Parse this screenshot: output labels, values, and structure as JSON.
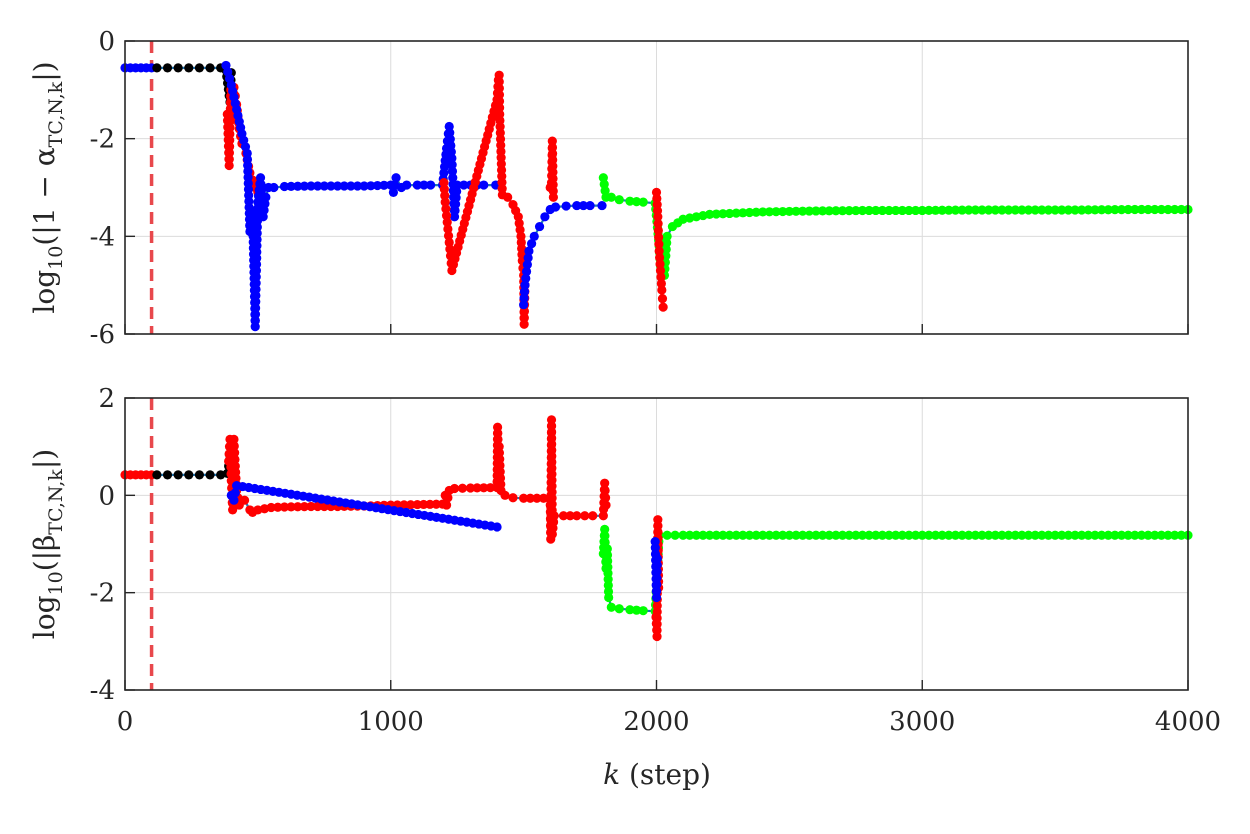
{
  "chart_data": [
    {
      "type": "scatter",
      "ylabel": {
        "prefix": "log",
        "sub1": "10",
        "mid": "(|1 − α",
        "sub2": "TC,N,k",
        "suffix": "|)"
      },
      "xlim": [
        0,
        4000
      ],
      "ylim": [
        -6,
        0
      ],
      "yticks": [
        "0",
        "-2",
        "-4",
        "-6"
      ],
      "ytick_values": [
        0,
        -2,
        -4,
        -6
      ],
      "xticks_shown": false,
      "grid": true,
      "vline": {
        "x": 100,
        "color": "#e8484c",
        "style": "dashed"
      },
      "stem_color": "#1f77b4",
      "segments": [
        {
          "color": "#0000ff",
          "points": [
            [
              0,
              -0.55
            ],
            [
              20,
              -0.55
            ],
            [
              40,
              -0.55
            ],
            [
              60,
              -0.55
            ],
            [
              80,
              -0.55
            ],
            [
              100,
              -0.55
            ]
          ]
        },
        {
          "color": "#000000",
          "points": [
            [
              120,
              -0.55
            ],
            [
              160,
              -0.55
            ],
            [
              200,
              -0.55
            ],
            [
              240,
              -0.55
            ],
            [
              280,
              -0.55
            ],
            [
              320,
              -0.55
            ],
            [
              360,
              -0.55
            ],
            [
              380,
              -0.6
            ],
            [
              395,
              -1.25
            ],
            [
              400,
              -0.65
            ]
          ]
        },
        {
          "color": "#ff0000",
          "points": [
            [
              385,
              -1.5
            ],
            [
              392,
              -2.55
            ],
            [
              398,
              -1.0
            ],
            [
              405,
              -1.6
            ],
            [
              410,
              -0.95
            ],
            [
              420,
              -1.3
            ],
            [
              430,
              -1.8
            ],
            [
              440,
              -2.1
            ],
            [
              455,
              -2.3
            ],
            [
              470,
              -2.7
            ],
            [
              480,
              -2.85
            ],
            [
              490,
              -3.0
            ],
            [
              500,
              -3.1
            ]
          ]
        },
        {
          "color": "#0000ff",
          "points": [
            [
              380,
              -0.5
            ],
            [
              400,
              -0.9
            ],
            [
              420,
              -1.4
            ],
            [
              440,
              -1.9
            ],
            [
              460,
              -2.3
            ],
            [
              470,
              -3.9
            ],
            [
              480,
              -3.5
            ],
            [
              490,
              -5.85
            ],
            [
              500,
              -3.3
            ],
            [
              510,
              -2.8
            ],
            [
              520,
              -3.6
            ],
            [
              530,
              -3.2
            ],
            [
              540,
              -3.0
            ],
            [
              560,
              -3.0
            ],
            [
              600,
              -2.98
            ],
            [
              700,
              -2.97
            ],
            [
              800,
              -2.97
            ],
            [
              900,
              -2.97
            ],
            [
              1000,
              -2.95
            ],
            [
              1010,
              -3.1
            ],
            [
              1020,
              -2.8
            ],
            [
              1040,
              -3.0
            ],
            [
              1060,
              -2.95
            ],
            [
              1100,
              -2.95
            ],
            [
              1150,
              -2.95
            ],
            [
              1195,
              -2.95
            ],
            [
              1210,
              -2.2
            ],
            [
              1220,
              -1.75
            ],
            [
              1230,
              -2.4
            ],
            [
              1240,
              -3.6
            ],
            [
              1250,
              -2.95
            ],
            [
              1300,
              -2.95
            ],
            [
              1350,
              -2.95
            ],
            [
              1395,
              -2.95
            ]
          ]
        },
        {
          "color": "#ff0000",
          "points": [
            [
              1200,
              -2.9
            ],
            [
              1205,
              -3.3
            ],
            [
              1225,
              -4.4
            ],
            [
              1230,
              -4.7
            ],
            [
              1400,
              -1.2
            ],
            [
              1405,
              -0.8
            ],
            [
              1408,
              -0.7
            ],
            [
              1410,
              -1.5
            ],
            [
              1420,
              -3.15
            ],
            [
              1440,
              -3.2
            ],
            [
              1460,
              -3.35
            ],
            [
              1480,
              -3.6
            ],
            [
              1490,
              -4.0
            ],
            [
              1495,
              -4.5
            ],
            [
              1500,
              -4.8
            ],
            [
              1502,
              -5.8
            ],
            [
              1505,
              -5.0
            ]
          ]
        },
        {
          "color": "#0000ff",
          "points": [
            [
              1500,
              -5.4
            ],
            [
              1505,
              -5.0
            ],
            [
              1520,
              -4.3
            ],
            [
              1540,
              -4.0
            ],
            [
              1560,
              -3.8
            ],
            [
              1580,
              -3.6
            ],
            [
              1600,
              -3.45
            ],
            [
              1620,
              -3.4
            ],
            [
              1660,
              -3.38
            ],
            [
              1700,
              -3.37
            ],
            [
              1750,
              -3.37
            ],
            [
              1795,
              -3.37
            ]
          ]
        },
        {
          "color": "#ff0000",
          "points": [
            [
              1600,
              -3.0
            ],
            [
              1605,
              -2.9
            ],
            [
              1608,
              -2.05
            ],
            [
              1612,
              -3.2
            ]
          ]
        },
        {
          "color": "#00ff00",
          "points": [
            [
              1800,
              -2.8
            ],
            [
              1810,
              -3.2
            ],
            [
              1830,
              -3.2
            ],
            [
              1860,
              -3.25
            ],
            [
              1900,
              -3.28
            ],
            [
              1950,
              -3.3
            ],
            [
              1995,
              -3.32
            ],
            [
              2010,
              -4.2
            ],
            [
              2015,
              -4.6
            ],
            [
              2020,
              -4.1
            ],
            [
              2030,
              -4.8
            ],
            [
              2040,
              -4.0
            ],
            [
              2060,
              -3.8
            ],
            [
              2100,
              -3.65
            ],
            [
              2200,
              -3.55
            ],
            [
              2400,
              -3.5
            ],
            [
              2600,
              -3.48
            ],
            [
              2800,
              -3.47
            ],
            [
              3000,
              -3.47
            ],
            [
              3200,
              -3.46
            ],
            [
              3400,
              -3.46
            ],
            [
              3600,
              -3.46
            ],
            [
              3800,
              -3.45
            ],
            [
              4000,
              -3.45
            ]
          ]
        },
        {
          "color": "#ff0000",
          "points": [
            [
              2000,
              -3.1
            ],
            [
              2005,
              -3.6
            ],
            [
              2010,
              -4.3
            ],
            [
              2020,
              -5.1
            ],
            [
              2025,
              -5.45
            ]
          ]
        }
      ]
    },
    {
      "type": "scatter",
      "ylabel": {
        "prefix": "log",
        "sub1": "10",
        "mid": "(|β",
        "sub2": "TC,N,k",
        "suffix": "|)"
      },
      "xlabel": {
        "var": "k",
        "unit": " (step)"
      },
      "xlim": [
        0,
        4000
      ],
      "ylim": [
        -4,
        2
      ],
      "yticks": [
        "2",
        "0",
        "-2",
        "-4"
      ],
      "ytick_values": [
        2,
        0,
        -2,
        -4
      ],
      "xticks": [
        "0",
        "1000",
        "2000",
        "3000",
        "4000"
      ],
      "xtick_values": [
        0,
        1000,
        2000,
        3000,
        4000
      ],
      "grid": true,
      "vline": {
        "x": 100,
        "color": "#e8484c",
        "style": "dashed"
      },
      "stem_color": "#1f77b4",
      "segments": [
        {
          "color": "#ff0000",
          "points": [
            [
              0,
              0.42
            ],
            [
              20,
              0.42
            ],
            [
              40,
              0.42
            ],
            [
              60,
              0.42
            ],
            [
              80,
              0.42
            ],
            [
              100,
              0.42
            ]
          ]
        },
        {
          "color": "#000000",
          "points": [
            [
              120,
              0.42
            ],
            [
              160,
              0.42
            ],
            [
              200,
              0.42
            ],
            [
              240,
              0.42
            ],
            [
              280,
              0.42
            ],
            [
              320,
              0.42
            ],
            [
              360,
              0.42
            ],
            [
              385,
              0.45
            ],
            [
              400,
              0.9
            ]
          ]
        },
        {
          "color": "#ff0000",
          "points": [
            [
              390,
              0.7
            ],
            [
              395,
              1.15
            ],
            [
              400,
              0.3
            ],
            [
              405,
              -0.3
            ],
            [
              410,
              1.15
            ],
            [
              415,
              0.6
            ],
            [
              420,
              0.1
            ],
            [
              430,
              -0.2
            ],
            [
              450,
              -0.1
            ],
            [
              470,
              -0.3
            ],
            [
              480,
              -0.35
            ],
            [
              500,
              -0.3
            ],
            [
              550,
              -0.25
            ],
            [
              600,
              -0.24
            ],
            [
              700,
              -0.23
            ],
            [
              800,
              -0.23
            ],
            [
              900,
              -0.22
            ],
            [
              1000,
              -0.2
            ],
            [
              1100,
              -0.19
            ],
            [
              1195,
              -0.18
            ],
            [
              1205,
              0.0
            ],
            [
              1210,
              -0.2
            ],
            [
              1220,
              0.1
            ],
            [
              1240,
              0.14
            ],
            [
              1300,
              0.15
            ],
            [
              1400,
              0.16
            ],
            [
              1402,
              1.4
            ],
            [
              1405,
              0.9
            ],
            [
              1408,
              1.0
            ],
            [
              1415,
              0.1
            ],
            [
              1430,
              0.0
            ],
            [
              1460,
              -0.05
            ],
            [
              1500,
              -0.06
            ],
            [
              1600,
              -0.06
            ],
            [
              1602,
              -0.9
            ],
            [
              1605,
              1.55
            ],
            [
              1608,
              -0.8
            ],
            [
              1615,
              -0.42
            ],
            [
              1650,
              -0.42
            ],
            [
              1700,
              -0.42
            ],
            [
              1760,
              -0.42
            ],
            [
              1800,
              -0.42
            ],
            [
              1805,
              0.25
            ],
            [
              1810,
              -0.2
            ]
          ]
        },
        {
          "color": "#0000ff",
          "points": [
            [
              400,
              0.0
            ],
            [
              410,
              -0.1
            ],
            [
              420,
              0.2
            ],
            [
              1400,
              -0.65
            ]
          ]
        },
        {
          "color": "#00ff00",
          "points": [
            [
              1800,
              -1.2
            ],
            [
              1805,
              -0.7
            ],
            [
              1810,
              -1.5
            ],
            [
              1815,
              -1.1
            ],
            [
              1820,
              -2.1
            ],
            [
              1830,
              -2.3
            ],
            [
              1860,
              -2.33
            ],
            [
              1900,
              -2.35
            ],
            [
              1950,
              -2.37
            ],
            [
              1995,
              -2.38
            ],
            [
              2010,
              -0.82
            ],
            [
              2040,
              -0.82
            ],
            [
              2100,
              -0.82
            ],
            [
              2200,
              -0.82
            ],
            [
              2400,
              -0.82
            ],
            [
              2600,
              -0.82
            ],
            [
              2800,
              -0.82
            ],
            [
              3000,
              -0.82
            ],
            [
              3200,
              -0.82
            ],
            [
              3400,
              -0.82
            ],
            [
              3600,
              -0.82
            ],
            [
              3800,
              -0.82
            ],
            [
              4000,
              -0.82
            ]
          ]
        },
        {
          "color": "#ff0000",
          "points": [
            [
              1998,
              -2.5
            ],
            [
              2002,
              -2.9
            ],
            [
              2005,
              -0.5
            ],
            [
              2008,
              -1.9
            ]
          ]
        },
        {
          "color": "#0000ff",
          "points": [
            [
              1995,
              -0.95
            ],
            [
              2000,
              -2.1
            ],
            [
              2003,
              -1.3
            ]
          ]
        }
      ]
    }
  ]
}
